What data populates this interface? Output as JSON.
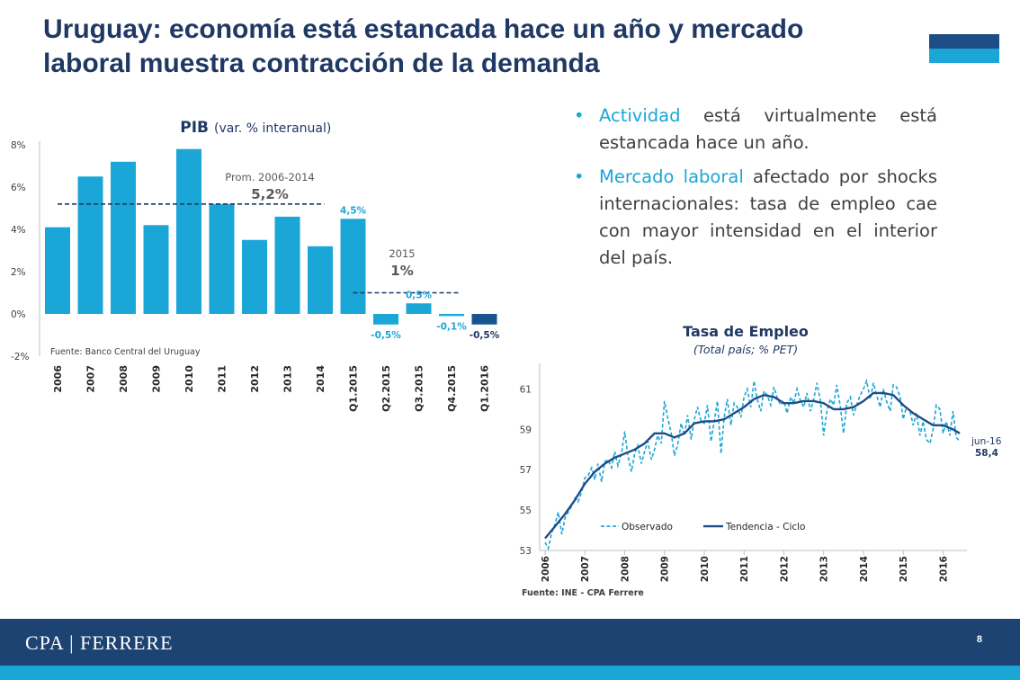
{
  "slide": {
    "title": "Uruguay: economía está estancada hace un año y mercado laboral muestra contracción de la demanda",
    "bullets": [
      {
        "highlight": "Actividad",
        "text": " está virtualmente está estancada hace un año."
      },
      {
        "highlight": "Mercado laboral",
        "text": " afectado por shocks internacionales: tasa de empleo cae con mayor intensidad en el interior del país."
      }
    ],
    "footer": {
      "brand": "CPA | FERRERE",
      "page": "8"
    },
    "colors": {
      "navy": "#1f3864",
      "accent": "#1aa6d6",
      "dark_bar": "#17548d",
      "footer": "#1d4373"
    }
  },
  "chart_data": [
    {
      "type": "bar",
      "title": "PIB",
      "subtitle": "(var. % interanual)",
      "source": "Fuente: Banco Central del Uruguay",
      "categories": [
        "2006",
        "2007",
        "2008",
        "2009",
        "2010",
        "2011",
        "2012",
        "2013",
        "2014",
        "Q1.2015",
        "Q2.2015",
        "Q3.2015",
        "Q4.2015",
        "Q1.2016"
      ],
      "values": [
        4.1,
        6.5,
        7.2,
        4.2,
        7.8,
        5.2,
        3.5,
        4.6,
        3.2,
        4.5,
        -0.5,
        0.5,
        -0.1,
        -0.5
      ],
      "data_labels": [
        "",
        "",
        "",
        "",
        "",
        "",
        "",
        "",
        "",
        "4,5%",
        "-0,5%",
        "0,5%",
        "-0,1%",
        "-0,5%"
      ],
      "highlight_last": true,
      "yticks": [
        "-2%",
        "0%",
        "2%",
        "4%",
        "6%",
        "8%"
      ],
      "ylim": [
        -2,
        8
      ],
      "references": [
        {
          "label": "Prom. 2006-2014",
          "value_label": "5,2%",
          "value": 5.2,
          "from": "2006",
          "to": "Q1.2015"
        },
        {
          "label": "2015",
          "value_label": "1%",
          "value": 1.0,
          "from": "Q1.2015",
          "to": "Q4.2015"
        }
      ]
    },
    {
      "type": "line",
      "title": "Tasa de Empleo",
      "subtitle": "(Total país; % PET)",
      "source": "Fuente: INE - CPA Ferrere",
      "xticks": [
        "2006",
        "2007",
        "2008",
        "2009",
        "2010",
        "2011",
        "2012",
        "2013",
        "2014",
        "2015",
        "2016"
      ],
      "yticks": [
        "53",
        "55",
        "57",
        "59",
        "61"
      ],
      "ylim": [
        53,
        62
      ],
      "xlim": [
        2006.0,
        2016.6
      ],
      "end_label": "jun-16",
      "end_value_label": "58,4",
      "series": [
        {
          "name": "Observado",
          "style": "dashed",
          "points": [
            [
              2006.0,
              53.4
            ],
            [
              2006.08,
              53.1
            ],
            [
              2006.17,
              53.9
            ],
            [
              2006.25,
              54.3
            ],
            [
              2006.33,
              54.9
            ],
            [
              2006.42,
              53.8
            ],
            [
              2006.5,
              54.6
            ],
            [
              2006.58,
              54.9
            ],
            [
              2006.67,
              55.2
            ],
            [
              2006.75,
              55.6
            ],
            [
              2006.83,
              55.4
            ],
            [
              2006.92,
              55.9
            ],
            [
              2007.0,
              56.6
            ],
            [
              2007.08,
              56.7
            ],
            [
              2007.17,
              57.1
            ],
            [
              2007.25,
              56.5
            ],
            [
              2007.33,
              57.3
            ],
            [
              2007.42,
              56.4
            ],
            [
              2007.5,
              57.4
            ],
            [
              2007.58,
              57.5
            ],
            [
              2007.67,
              57.1
            ],
            [
              2007.75,
              57.9
            ],
            [
              2007.83,
              57.2
            ],
            [
              2007.92,
              57.8
            ],
            [
              2008.0,
              58.9
            ],
            [
              2008.08,
              57.7
            ],
            [
              2008.17,
              56.9
            ],
            [
              2008.25,
              57.8
            ],
            [
              2008.33,
              58.2
            ],
            [
              2008.42,
              57.3
            ],
            [
              2008.5,
              57.9
            ],
            [
              2008.58,
              58.4
            ],
            [
              2008.67,
              57.5
            ],
            [
              2008.75,
              58.0
            ],
            [
              2008.83,
              58.7
            ],
            [
              2008.92,
              58.3
            ],
            [
              2009.0,
              60.4
            ],
            [
              2009.08,
              59.6
            ],
            [
              2009.17,
              58.8
            ],
            [
              2009.25,
              57.7
            ],
            [
              2009.33,
              58.2
            ],
            [
              2009.42,
              59.3
            ],
            [
              2009.5,
              58.7
            ],
            [
              2009.58,
              59.7
            ],
            [
              2009.67,
              58.5
            ],
            [
              2009.75,
              59.5
            ],
            [
              2009.83,
              60.1
            ],
            [
              2009.92,
              59.4
            ],
            [
              2010.0,
              59.3
            ],
            [
              2010.08,
              60.2
            ],
            [
              2010.17,
              58.4
            ],
            [
              2010.25,
              59.4
            ],
            [
              2010.33,
              60.4
            ],
            [
              2010.42,
              57.8
            ],
            [
              2010.5,
              59.6
            ],
            [
              2010.58,
              60.5
            ],
            [
              2010.67,
              59.2
            ],
            [
              2010.75,
              60.3
            ],
            [
              2010.83,
              60.1
            ],
            [
              2010.92,
              59.6
            ],
            [
              2011.0,
              60.6
            ],
            [
              2011.08,
              61.0
            ],
            [
              2011.17,
              60.1
            ],
            [
              2011.25,
              61.4
            ],
            [
              2011.33,
              60.5
            ],
            [
              2011.42,
              59.9
            ],
            [
              2011.5,
              60.9
            ],
            [
              2011.58,
              60.7
            ],
            [
              2011.67,
              60.2
            ],
            [
              2011.75,
              61.1
            ],
            [
              2011.83,
              60.6
            ],
            [
              2011.92,
              60.2
            ],
            [
              2012.0,
              60.4
            ],
            [
              2012.08,
              59.8
            ],
            [
              2012.17,
              60.6
            ],
            [
              2012.25,
              60.3
            ],
            [
              2012.33,
              61.0
            ],
            [
              2012.42,
              60.4
            ],
            [
              2012.5,
              60.1
            ],
            [
              2012.58,
              60.8
            ],
            [
              2012.67,
              59.9
            ],
            [
              2012.75,
              60.5
            ],
            [
              2012.83,
              61.3
            ],
            [
              2012.92,
              60.4
            ],
            [
              2013.0,
              58.7
            ],
            [
              2013.08,
              59.9
            ],
            [
              2013.17,
              60.5
            ],
            [
              2013.25,
              60.2
            ],
            [
              2013.33,
              61.2
            ],
            [
              2013.42,
              60.1
            ],
            [
              2013.5,
              58.8
            ],
            [
              2013.58,
              60.3
            ],
            [
              2013.67,
              60.6
            ],
            [
              2013.75,
              59.7
            ],
            [
              2013.83,
              60.2
            ],
            [
              2013.92,
              60.7
            ],
            [
              2014.0,
              61.0
            ],
            [
              2014.08,
              61.4
            ],
            [
              2014.17,
              60.5
            ],
            [
              2014.25,
              61.3
            ],
            [
              2014.33,
              60.7
            ],
            [
              2014.42,
              60.1
            ],
            [
              2014.5,
              61.0
            ],
            [
              2014.58,
              60.4
            ],
            [
              2014.67,
              59.9
            ],
            [
              2014.75,
              61.2
            ],
            [
              2014.83,
              61.1
            ],
            [
              2014.92,
              60.6
            ],
            [
              2015.0,
              59.5
            ],
            [
              2015.08,
              60.1
            ],
            [
              2015.17,
              59.9
            ],
            [
              2015.25,
              59.2
            ],
            [
              2015.33,
              59.8
            ],
            [
              2015.42,
              58.7
            ],
            [
              2015.5,
              59.4
            ],
            [
              2015.58,
              58.5
            ],
            [
              2015.67,
              58.3
            ],
            [
              2015.75,
              59.0
            ],
            [
              2015.83,
              60.2
            ],
            [
              2015.92,
              60.0
            ],
            [
              2016.0,
              58.8
            ],
            [
              2016.08,
              59.4
            ],
            [
              2016.17,
              58.7
            ],
            [
              2016.25,
              59.9
            ],
            [
              2016.33,
              58.6
            ],
            [
              2016.42,
              58.4
            ]
          ]
        },
        {
          "name": "Tendencia - Ciclo",
          "style": "solid",
          "points": [
            [
              2006.0,
              53.6
            ],
            [
              2006.25,
              54.2
            ],
            [
              2006.5,
              54.8
            ],
            [
              2006.75,
              55.5
            ],
            [
              2007.0,
              56.3
            ],
            [
              2007.25,
              56.9
            ],
            [
              2007.5,
              57.3
            ],
            [
              2007.75,
              57.6
            ],
            [
              2008.0,
              57.8
            ],
            [
              2008.25,
              58.0
            ],
            [
              2008.5,
              58.3
            ],
            [
              2008.75,
              58.8
            ],
            [
              2009.0,
              58.8
            ],
            [
              2009.25,
              58.6
            ],
            [
              2009.5,
              58.8
            ],
            [
              2009.75,
              59.3
            ],
            [
              2010.0,
              59.4
            ],
            [
              2010.25,
              59.4
            ],
            [
              2010.5,
              59.5
            ],
            [
              2010.75,
              59.8
            ],
            [
              2011.0,
              60.1
            ],
            [
              2011.25,
              60.5
            ],
            [
              2011.5,
              60.7
            ],
            [
              2011.75,
              60.6
            ],
            [
              2012.0,
              60.3
            ],
            [
              2012.25,
              60.3
            ],
            [
              2012.5,
              60.4
            ],
            [
              2012.75,
              60.4
            ],
            [
              2013.0,
              60.3
            ],
            [
              2013.25,
              60.0
            ],
            [
              2013.5,
              60.0
            ],
            [
              2013.75,
              60.1
            ],
            [
              2014.0,
              60.4
            ],
            [
              2014.25,
              60.8
            ],
            [
              2014.5,
              60.8
            ],
            [
              2014.75,
              60.7
            ],
            [
              2015.0,
              60.2
            ],
            [
              2015.25,
              59.8
            ],
            [
              2015.5,
              59.5
            ],
            [
              2015.75,
              59.2
            ],
            [
              2016.0,
              59.2
            ],
            [
              2016.25,
              59.0
            ],
            [
              2016.42,
              58.8
            ]
          ]
        }
      ]
    }
  ]
}
